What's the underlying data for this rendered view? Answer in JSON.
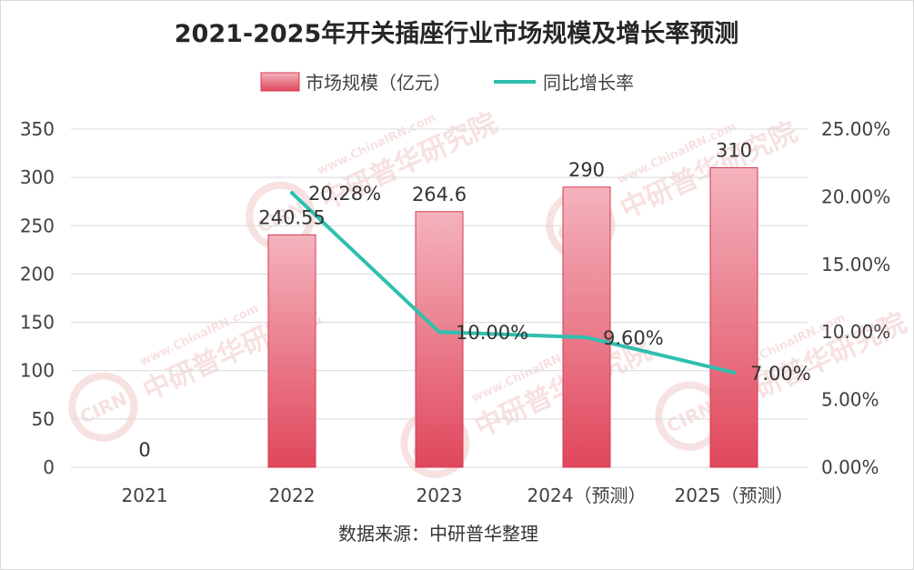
{
  "chart_data": {
    "type": "bar",
    "title": "2021-2025年开关插座行业市场规模及增长率预测",
    "categories": [
      "2021",
      "2022",
      "2023",
      "2024（预测）",
      "2025（预测）"
    ],
    "series": [
      {
        "name": "市场规模（亿元）",
        "type": "bar",
        "axis": "left",
        "values": [
          0,
          240.55,
          264.6,
          290,
          310
        ],
        "labels": [
          "0",
          "240.55",
          "264.6",
          "290",
          "310"
        ]
      },
      {
        "name": "同比增长率",
        "type": "line",
        "axis": "right",
        "values": [
          null,
          20.28,
          10.0,
          9.6,
          7.0
        ],
        "labels": [
          "",
          "20.28%",
          "10.00%",
          "9.60%",
          "7.00%"
        ]
      }
    ],
    "y_left": {
      "min": 0,
      "max": 350,
      "ticks": [
        "0",
        "50",
        "100",
        "150",
        "200",
        "250",
        "300",
        "350"
      ]
    },
    "y_right": {
      "min": 0,
      "max": 25,
      "ticks": [
        "0.00%",
        "5.00%",
        "10.00%",
        "15.00%",
        "20.00%",
        "25.00%"
      ]
    },
    "legend_position": "top-center",
    "grid": "horizontal",
    "colors": {
      "bar_top": "#f4b3bd",
      "bar_bottom": "#e0475c",
      "bar_stroke": "#d63a52",
      "line": "#2fbfae",
      "grid": "#d9d9d9",
      "watermark": "#e9a9a9"
    }
  },
  "source_note": "数据来源：中研普华整理",
  "watermark": {
    "text_cn": "中研普华研究院",
    "text_en": "www.ChinaIRN.com",
    "logo": "CIRN"
  }
}
